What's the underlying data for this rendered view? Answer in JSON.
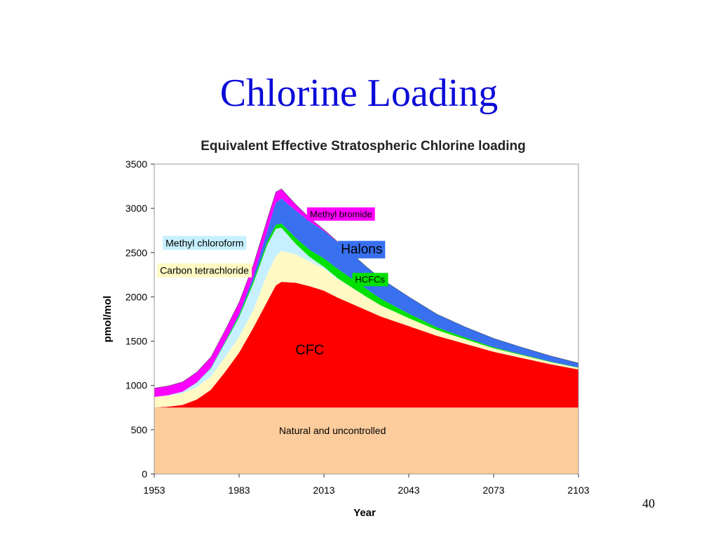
{
  "slide": {
    "title": "Chlorine Loading",
    "page_number": "40"
  },
  "chart_data": {
    "type": "area",
    "stacked": true,
    "title": "Equivalent Effective Stratospheric Chlorine loading",
    "xlabel": "Year",
    "ylabel": "pmol/mol",
    "xlim": [
      1953,
      2103
    ],
    "ylim": [
      0,
      3500
    ],
    "x_ticks": [
      1953,
      1983,
      2013,
      2043,
      2073,
      2103
    ],
    "y_ticks": [
      0,
      500,
      1000,
      1500,
      2000,
      2500,
      3000,
      3500
    ],
    "grid": false,
    "x": [
      1953,
      1958,
      1963,
      1968,
      1973,
      1978,
      1983,
      1988,
      1993,
      1996,
      1998,
      2003,
      2008,
      2013,
      2018,
      2023,
      2028,
      2033,
      2043,
      2053,
      2063,
      2073,
      2083,
      2093,
      2103
    ],
    "series": [
      {
        "name": "Natural and uncontrolled",
        "color": "#fccc9c",
        "values": [
          750,
          750,
          750,
          750,
          750,
          750,
          750,
          750,
          750,
          750,
          750,
          750,
          750,
          750,
          750,
          750,
          750,
          750,
          750,
          750,
          750,
          750,
          750,
          750,
          750
        ]
      },
      {
        "name": "CFC",
        "color": "#ff0000",
        "values": [
          0,
          10,
          30,
          90,
          200,
          400,
          620,
          900,
          1200,
          1380,
          1420,
          1410,
          1370,
          1320,
          1240,
          1170,
          1100,
          1030,
          920,
          810,
          720,
          630,
          560,
          490,
          430
        ]
      },
      {
        "name": "Carbon tetrachloride",
        "color": "#fff9c4",
        "values": [
          120,
          125,
          130,
          140,
          150,
          165,
          180,
          200,
          310,
          330,
          350,
          320,
          280,
          250,
          210,
          180,
          150,
          125,
          90,
          65,
          50,
          40,
          32,
          25,
          20
        ]
      },
      {
        "name": "Methyl chloroform",
        "color": "#c6f0ff",
        "values": [
          0,
          5,
          20,
          50,
          90,
          160,
          220,
          300,
          330,
          310,
          260,
          120,
          50,
          20,
          8,
          3,
          1,
          0,
          0,
          0,
          0,
          0,
          0,
          0,
          0
        ]
      },
      {
        "name": "HCFCs",
        "color": "#00e000",
        "values": [
          0,
          0,
          0,
          2,
          5,
          10,
          20,
          30,
          40,
          45,
          50,
          65,
          80,
          95,
          105,
          100,
          90,
          75,
          50,
          30,
          20,
          12,
          8,
          5,
          3
        ]
      },
      {
        "name": "Halons",
        "color": "#3870f0",
        "values": [
          0,
          0,
          0,
          2,
          5,
          10,
          20,
          50,
          120,
          250,
          280,
          310,
          320,
          310,
          300,
          280,
          250,
          230,
          190,
          150,
          120,
          100,
          80,
          65,
          50
        ]
      },
      {
        "name": "Methyl bromide",
        "color": "#ff00ff",
        "values": [
          100,
          105,
          110,
          115,
          120,
          125,
          130,
          130,
          130,
          120,
          110,
          70,
          40,
          15,
          5,
          0,
          0,
          0,
          0,
          0,
          0,
          0,
          0,
          0,
          0
        ]
      }
    ],
    "labels": [
      {
        "text": "Natural and uncontrolled",
        "x": 2016,
        "y": 450,
        "anchor": "middle",
        "size": 14,
        "color": "#000000",
        "box": null
      },
      {
        "text": "CFC",
        "x": 2008,
        "y": 1350,
        "anchor": "middle",
        "size": 20,
        "color": "#000000",
        "box": null
      },
      {
        "text": "Carbon tetrachloride",
        "x": 1955,
        "y": 2260,
        "anchor": "start",
        "size": 14,
        "color": "#000000",
        "box": "#fff9c4"
      },
      {
        "text": "Methyl chloroform",
        "x": 1957,
        "y": 2570,
        "anchor": "start",
        "size": 14,
        "color": "#000000",
        "box": "#c6f0ff"
      },
      {
        "text": "Methyl bromide",
        "x": 2008,
        "y": 2900,
        "anchor": "start",
        "size": 13,
        "color": "#000000",
        "box": "#ff00ff"
      },
      {
        "text": "Halons",
        "x": 2019,
        "y": 2490,
        "anchor": "start",
        "size": 19,
        "color": "#000000",
        "box": "#3870f0"
      },
      {
        "text": "HCFCs",
        "x": 2024,
        "y": 2160,
        "anchor": "start",
        "size": 13,
        "color": "#000000",
        "box": "#00e000"
      }
    ]
  }
}
